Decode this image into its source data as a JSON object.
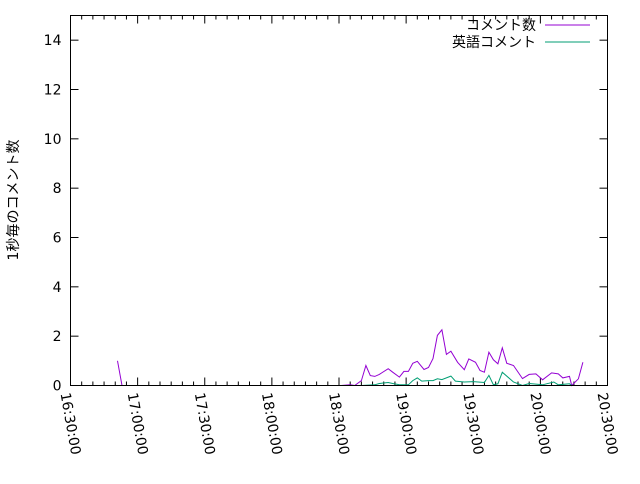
{
  "chart_data": {
    "type": "line",
    "title": "",
    "xlabel": "",
    "ylabel": "1秒毎のコメント数",
    "xlim": [
      "16:30:00",
      "20:30:00"
    ],
    "ylim": [
      0,
      15
    ],
    "xticks": [
      "16:30:00",
      "17:00:00",
      "17:30:00",
      "18:00:00",
      "18:30:00",
      "19:00:00",
      "19:30:00",
      "20:00:00",
      "20:30:00"
    ],
    "yticks": [
      "0",
      "2",
      "4",
      "6",
      "8",
      "10",
      "12",
      "14"
    ],
    "grid": false,
    "legend": "top-right",
    "series": [
      {
        "name": "コメント数",
        "color": "#9400d3",
        "x": [
          "16:51",
          "16:53",
          null,
          "18:22",
          "18:26",
          "18:31",
          "18:35",
          "18:37",
          "18:40",
          "18:42",
          "18:44",
          "18:46",
          "18:48",
          "18:52",
          "18:54",
          "18:57",
          "18:59",
          "19:01",
          "19:03",
          "19:05",
          "19:08",
          "19:10",
          "19:12",
          "19:14",
          "19:16",
          "19:18",
          "19:20",
          "19:23",
          "19:26",
          "19:28",
          "19:31",
          "19:33",
          "19:35",
          "19:37",
          "19:39",
          "19:41",
          "19:43",
          "19:45",
          "19:48",
          "19:52",
          "19:55",
          "19:58",
          "20:01",
          "20:05",
          "20:08",
          "20:10",
          "20:13",
          "20:14",
          "20:17",
          "20:19"
        ],
        "y": [
          1,
          0,
          null,
          0,
          0,
          0,
          0.03,
          0,
          0.2,
          0.81,
          0.4,
          0.37,
          0.45,
          0.68,
          0.54,
          0.34,
          0.57,
          0.57,
          0.9,
          0.98,
          0.65,
          0.73,
          1.09,
          2.03,
          2.26,
          1.26,
          1.39,
          0.94,
          0.64,
          1.08,
          0.94,
          0.61,
          0.54,
          1.35,
          1.04,
          0.88,
          1.53,
          0.9,
          0.81,
          0.28,
          0.45,
          0.47,
          0.23,
          0.51,
          0.47,
          0.31,
          0.37,
          0,
          0.27,
          0.94
        ]
      },
      {
        "name": "英語コメント",
        "color": "#009e73",
        "x": [
          "18:40",
          "18:46",
          "18:48",
          "18:52",
          "18:54",
          "18:57",
          "19:01",
          "19:03",
          "19:05",
          "19:07",
          "19:10",
          "19:12",
          "19:14",
          "19:16",
          "19:20",
          "19:22",
          "19:26",
          "19:30",
          "19:35",
          "19:37",
          "19:39",
          "19:41",
          "19:43",
          "19:48",
          "19:52",
          "19:55",
          "20:01",
          "20:06",
          "20:08",
          "20:13",
          "20:14"
        ],
        "y": [
          0,
          0.03,
          0.08,
          0.12,
          0.08,
          0.03,
          0.03,
          0.2,
          0.31,
          0.18,
          0.2,
          0.2,
          0.27,
          0.24,
          0.38,
          0.18,
          0.14,
          0.16,
          0.12,
          0.41,
          0.03,
          0.07,
          0.54,
          0.14,
          0,
          0.08,
          0.03,
          0.14,
          0.03,
          0.07,
          0
        ]
      }
    ]
  }
}
